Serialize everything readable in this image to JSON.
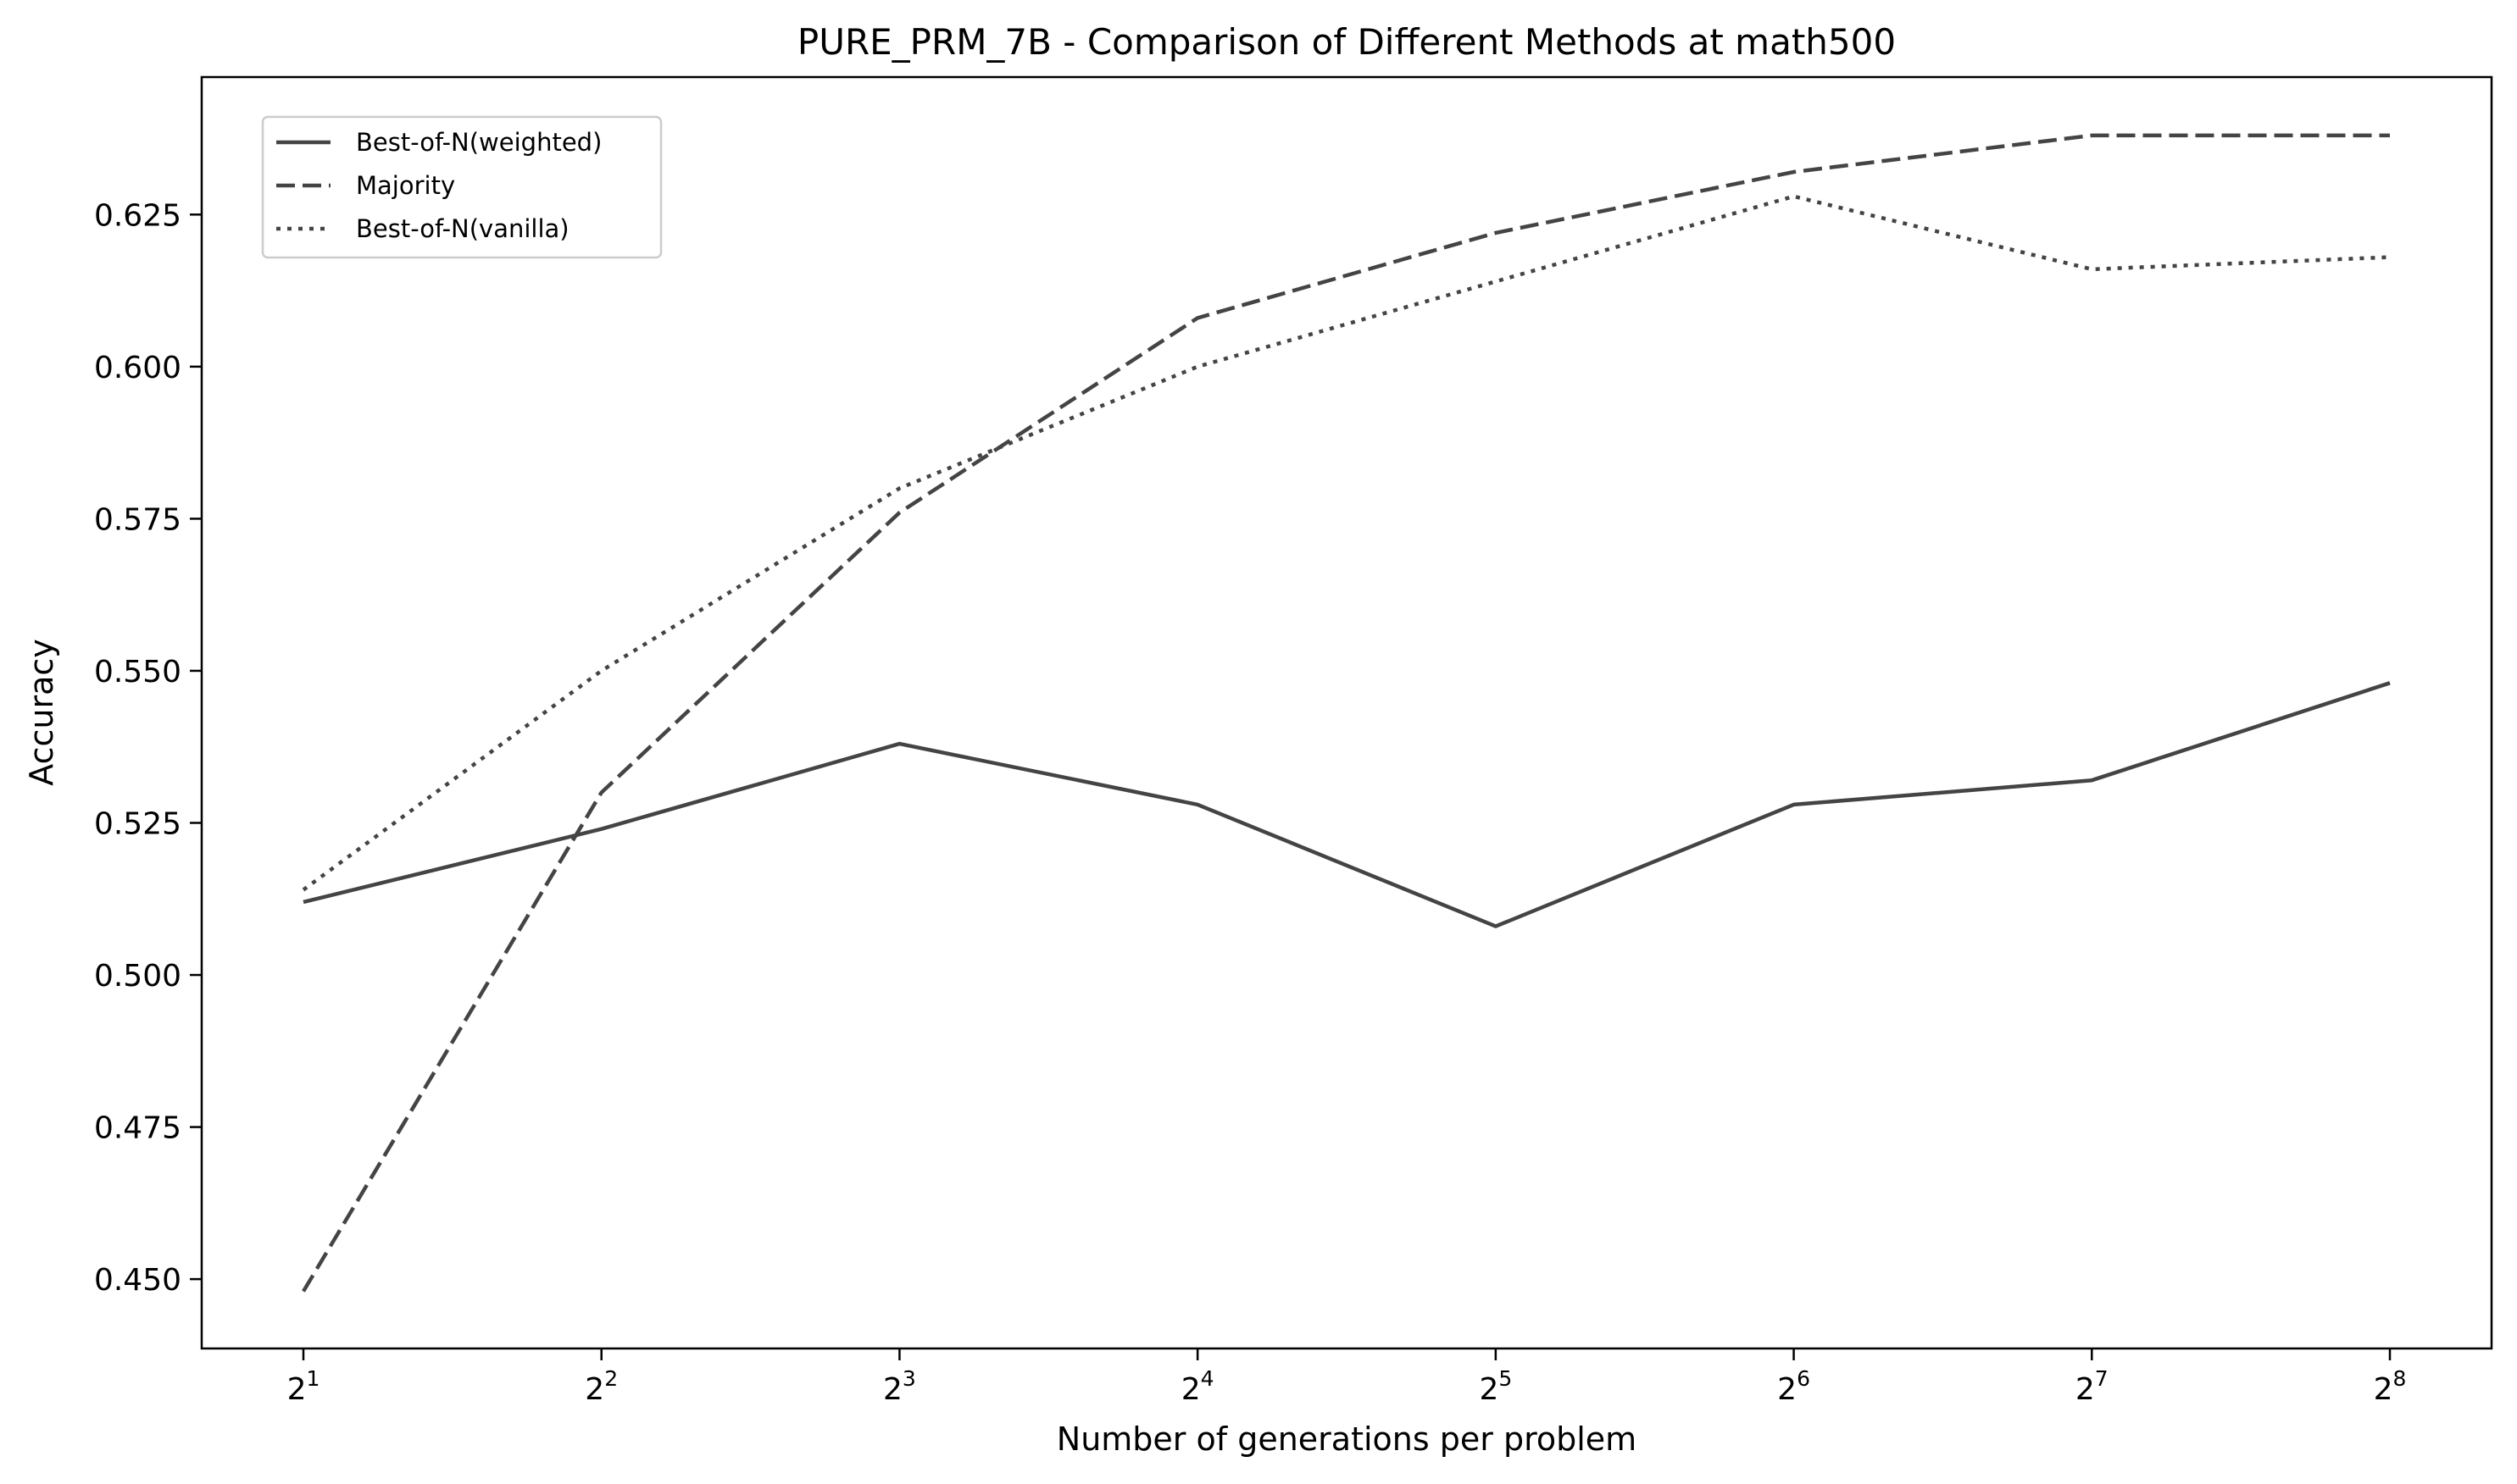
{
  "chart_data": {
    "type": "line",
    "title": "PURE_PRM_7B - Comparison of Different Methods at math500",
    "xlabel": "Number of generations per problem",
    "ylabel": "Accuracy",
    "x_scale": "log2",
    "x": [
      2,
      4,
      8,
      16,
      32,
      64,
      128,
      256
    ],
    "x_tick_labels": [
      {
        "base": "2",
        "exp": "1"
      },
      {
        "base": "2",
        "exp": "2"
      },
      {
        "base": "2",
        "exp": "3"
      },
      {
        "base": "2",
        "exp": "4"
      },
      {
        "base": "2",
        "exp": "5"
      },
      {
        "base": "2",
        "exp": "6"
      },
      {
        "base": "2",
        "exp": "7"
      },
      {
        "base": "2",
        "exp": "8"
      }
    ],
    "ylim": [
      0.4386,
      0.6476
    ],
    "y_ticks": [
      "0.450",
      "0.475",
      "0.500",
      "0.525",
      "0.550",
      "0.575",
      "0.600",
      "0.625"
    ],
    "grid": false,
    "legend_position": "top-left",
    "series": [
      {
        "name": "Best-of-N(weighted)",
        "style": "solid",
        "color": "#444444",
        "values": [
          0.512,
          0.524,
          0.538,
          0.528,
          0.508,
          0.528,
          0.532,
          0.548
        ]
      },
      {
        "name": "Majority",
        "style": "dashed",
        "color": "#444444",
        "values": [
          0.448,
          0.53,
          0.576,
          0.608,
          0.622,
          0.632,
          0.638,
          0.638
        ]
      },
      {
        "name": "Best-of-N(vanilla)",
        "style": "dotted",
        "color": "#444444",
        "values": [
          0.514,
          0.55,
          0.58,
          0.6,
          0.614,
          0.628,
          0.616,
          0.618
        ]
      }
    ]
  }
}
